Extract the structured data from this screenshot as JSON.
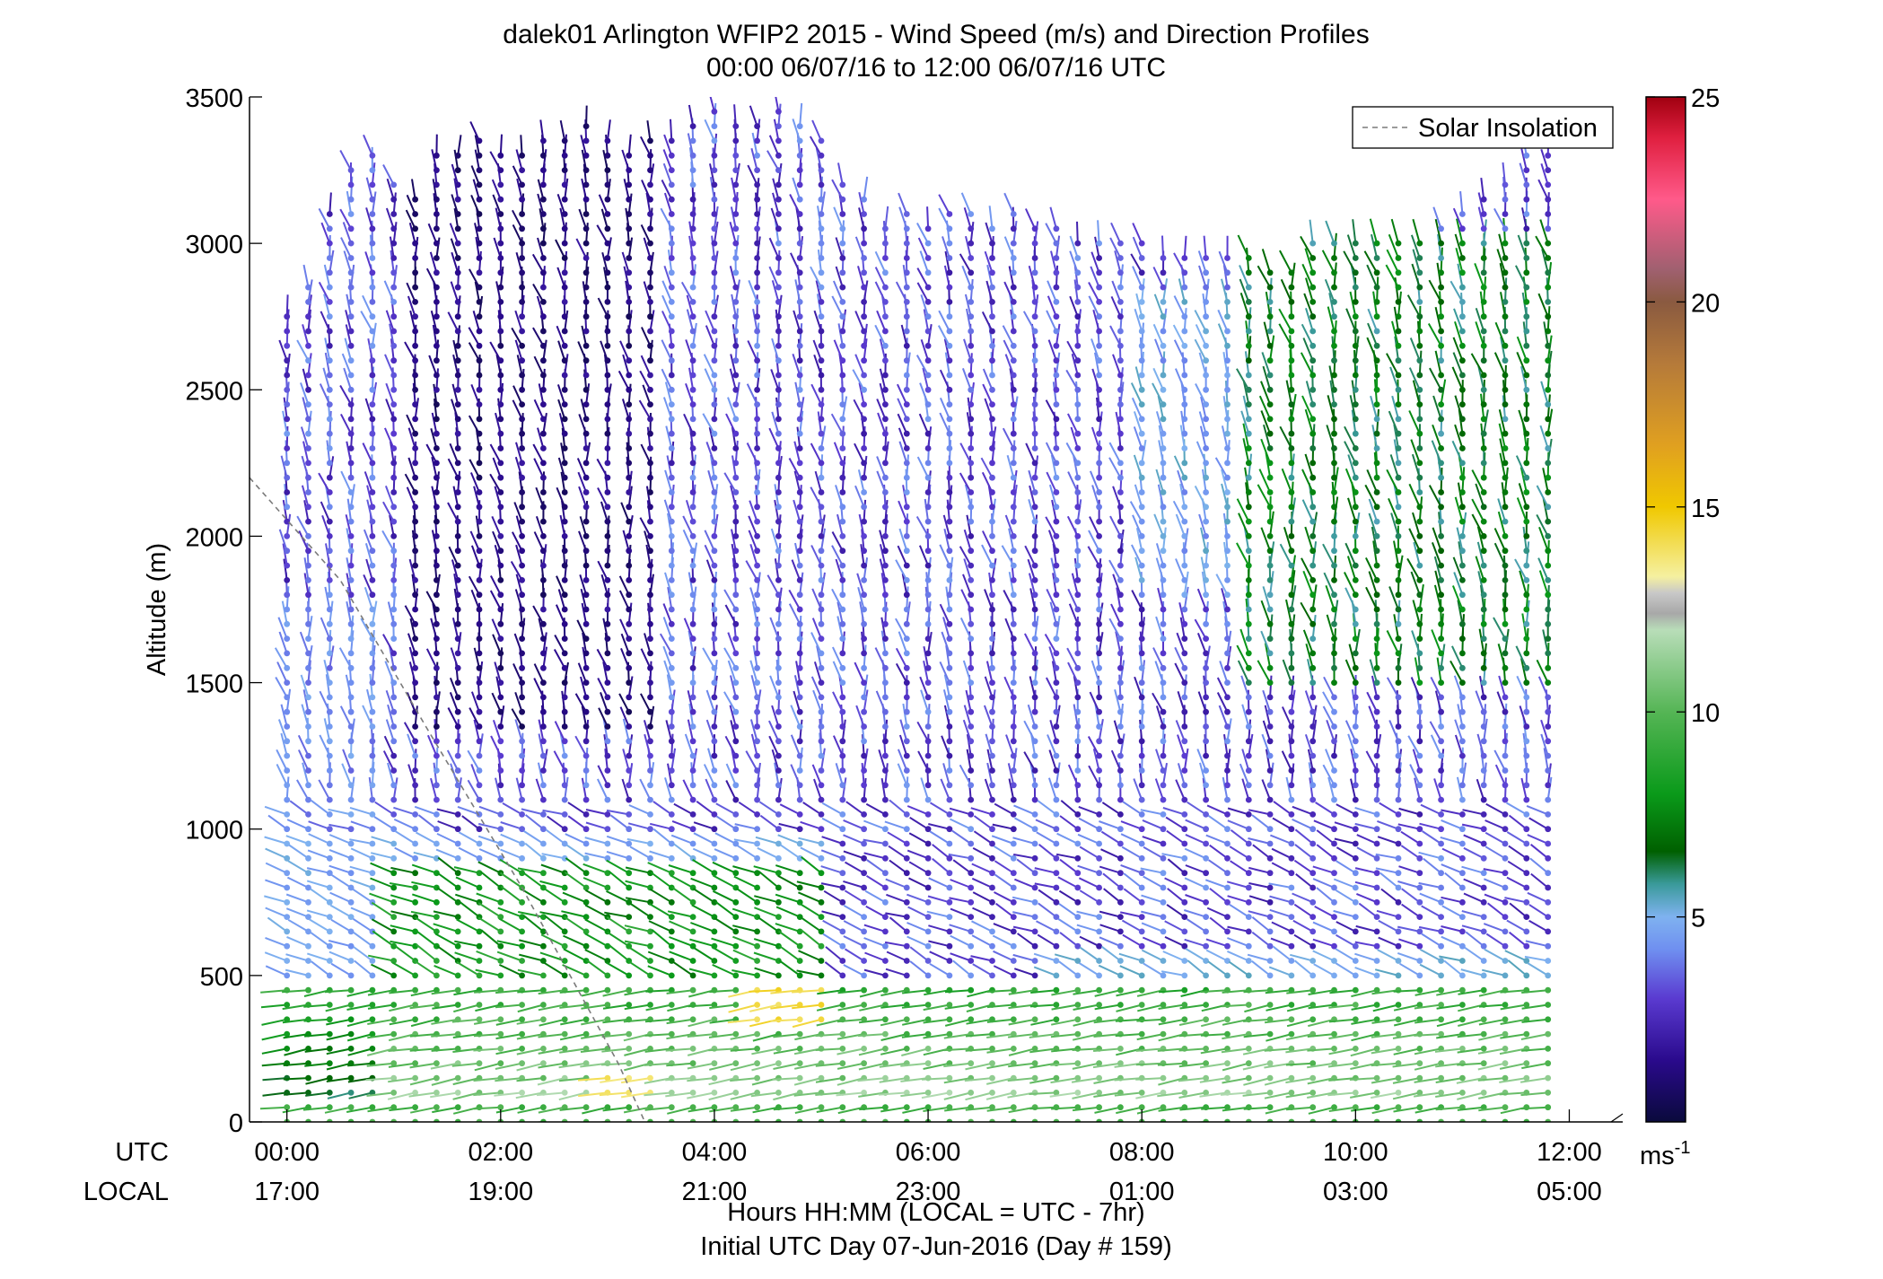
{
  "chart_data": {
    "type": "wind-barb profile",
    "title": "dalek01 Arlington WFIP2 2015 - Wind Speed (m/s) and Direction Profiles",
    "subtitle": "00:00 06/07/16 to 12:00 06/07/16  UTC",
    "ylabel": "Altitude (m)",
    "ylim": [
      0,
      3500
    ],
    "yticks": [
      "0",
      "500",
      "1000",
      "1500",
      "2000",
      "2500",
      "3000",
      "3500"
    ],
    "xlim_hours": [
      -0.35,
      12.5
    ],
    "x_axis": {
      "row1_label": "UTC",
      "row2_label": "LOCAL",
      "utc_ticks": [
        "00:00",
        "02:00",
        "04:00",
        "06:00",
        "08:00",
        "10:00",
        "12:00"
      ],
      "local_ticks": [
        "17:00",
        "19:00",
        "21:00",
        "23:00",
        "01:00",
        "03:00",
        "05:00"
      ],
      "tick_hours": [
        0,
        2,
        4,
        6,
        8,
        10,
        12
      ],
      "xlabel_line1": "Hours HH:MM  (LOCAL = UTC - 7hr)",
      "xlabel_line2": "Initial UTC Day 07-Jun-2016 (Day # 159)"
    },
    "legend": {
      "entries": [
        "Solar Insolation"
      ],
      "location": "top-right",
      "line_style": "dashed",
      "line_color": "#808080"
    },
    "solar_insolation": {
      "x_hours": [
        -0.35,
        0.5,
        1.3,
        2.2,
        3.1,
        3.35
      ],
      "y_m": [
        2200,
        1850,
        1350,
        800,
        200,
        0
      ]
    },
    "colorbar": {
      "ticks": [
        "5",
        "10",
        "15",
        "20",
        "25"
      ],
      "range": [
        0,
        25
      ],
      "unit_base": "ms",
      "unit_exp": "-1",
      "stops": [
        {
          "v": 0,
          "c": "#0a0a3c"
        },
        {
          "v": 1.5,
          "c": "#2a0a8c"
        },
        {
          "v": 3,
          "c": "#5a3ad0"
        },
        {
          "v": 4.2,
          "c": "#6f8ff0"
        },
        {
          "v": 5,
          "c": "#7fb2f0"
        },
        {
          "v": 5.8,
          "c": "#3a9a9a"
        },
        {
          "v": 6.6,
          "c": "#006000"
        },
        {
          "v": 8,
          "c": "#0a9a1a"
        },
        {
          "v": 10,
          "c": "#55b555"
        },
        {
          "v": 12,
          "c": "#b8ddb8"
        },
        {
          "v": 12.4,
          "c": "#a8a8a8"
        },
        {
          "v": 12.9,
          "c": "#c8c8c8"
        },
        {
          "v": 13.3,
          "c": "#f5f0a0"
        },
        {
          "v": 15,
          "c": "#f0c800"
        },
        {
          "v": 16.5,
          "c": "#e0a020"
        },
        {
          "v": 18.5,
          "c": "#b57a3a"
        },
        {
          "v": 20,
          "c": "#8a5a40"
        },
        {
          "v": 20.8,
          "c": "#a06070"
        },
        {
          "v": 22.5,
          "c": "#ff5a8a"
        },
        {
          "v": 24,
          "c": "#e02040"
        },
        {
          "v": 25,
          "c": "#a00010"
        }
      ]
    },
    "profile_times_hours": [
      0,
      0.2,
      0.4,
      0.6,
      0.8,
      1.0,
      1.2,
      1.4,
      1.6,
      1.8,
      2.0,
      2.2,
      2.4,
      2.6,
      2.8,
      3.0,
      3.2,
      3.4,
      3.6,
      3.8,
      4.0,
      4.2,
      4.4,
      4.6,
      4.8,
      5.0,
      5.2,
      5.4,
      5.6,
      5.8,
      6.0,
      6.2,
      6.4,
      6.6,
      6.8,
      7.0,
      7.2,
      7.4,
      7.6,
      7.8,
      8.0,
      8.2,
      8.4,
      8.6,
      8.8,
      9.0,
      9.2,
      9.4,
      9.6,
      9.8,
      10.0,
      10.2,
      10.4,
      10.6,
      10.8,
      11.0,
      11.2,
      11.4,
      11.6,
      11.8
    ],
    "range_gate_spacing_m": 50,
    "max_height_top_m": [
      2750,
      2850,
      3100,
      3250,
      3300,
      3200,
      3150,
      3300,
      3300,
      3350,
      3300,
      3300,
      3350,
      3350,
      3400,
      3350,
      3300,
      3350,
      3350,
      3400,
      3450,
      3400,
      3400,
      3450,
      3400,
      3350,
      3200,
      3150,
      3050,
      3100,
      3050,
      3100,
      3100,
      3050,
      3100,
      3050,
      3050,
      3000,
      3000,
      3000,
      3000,
      2950,
      2950,
      2950,
      2950,
      2950,
      2900,
      2900,
      3000,
      3000,
      3000,
      3000,
      3000,
      3000,
      3050,
      3100,
      3150,
      3200,
      3300,
      3300
    ],
    "speed_regimes_ms": [
      {
        "from_h": 0,
        "to_h": 12,
        "alt_range_m": [
          0,
          500
        ],
        "speed": "8-12"
      },
      {
        "from_h": 1.0,
        "to_h": 5.0,
        "alt_range_m": [
          500,
          850
        ],
        "speed": "7-9"
      },
      {
        "from_h": 4.5,
        "to_h": 5.0,
        "alt_range_m": [
          350,
          450
        ],
        "speed": "14"
      },
      {
        "from_h": 3.0,
        "to_h": 3.3,
        "alt_range_m": [
          50,
          150
        ],
        "speed": "14"
      },
      {
        "from_h": 0,
        "to_h": 12,
        "alt_range_m": [
          850,
          3500
        ],
        "speed": "1-5"
      },
      {
        "from_h": 9.0,
        "to_h": 12,
        "alt_range_m": [
          1500,
          3000
        ],
        "speed": "5-8"
      }
    ]
  }
}
